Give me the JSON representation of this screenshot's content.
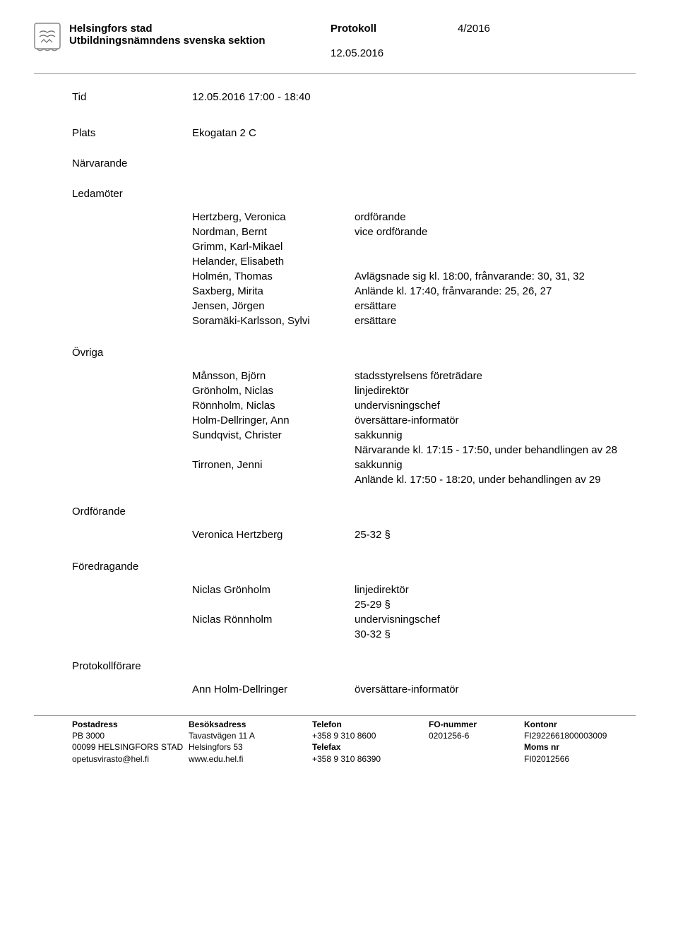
{
  "header": {
    "org": "Helsingfors stad",
    "doc_type": "Protokoll",
    "doc_num": "4/2016",
    "committee": "Utbildningsnämndens svenska sektion",
    "date": "12.05.2016"
  },
  "tid": {
    "label": "Tid",
    "value": "12.05.2016 17:00 - 18:40"
  },
  "plats": {
    "label": "Plats",
    "value": "Ekogatan 2 C"
  },
  "narvarande_label": "Närvarande",
  "ledamoter_label": "Ledamöter",
  "ledamoter": [
    {
      "name": "Hertzberg, Veronica",
      "role": "ordförande"
    },
    {
      "name": "Nordman, Bernt",
      "role": "vice ordförande"
    },
    {
      "name": "Grimm, Karl-Mikael",
      "role": ""
    },
    {
      "name": "Helander, Elisabeth",
      "role": ""
    },
    {
      "name": "Holmén, Thomas",
      "role": "Avlägsnade sig kl. 18:00, frånvarande: 30, 31, 32"
    },
    {
      "name": "Saxberg, Mirita",
      "role": "Anlände kl. 17:40, frånvarande: 25, 26, 27"
    },
    {
      "name": "Jensen, Jörgen",
      "role": "ersättare"
    },
    {
      "name": "Soramäki-Karlsson, Sylvi",
      "role": "ersättare"
    }
  ],
  "ovriga_label": "Övriga",
  "ovriga": [
    {
      "name": "Månsson, Björn",
      "role": "stadsstyrelsens företrädare"
    },
    {
      "name": "Grönholm, Niclas",
      "role": "linjedirektör"
    },
    {
      "name": "Rönnholm, Niclas",
      "role": "undervisningschef"
    },
    {
      "name": "Holm-Dellringer, Ann",
      "role": "översättare-informatör"
    },
    {
      "name": "Sundqvist, Christer",
      "role": "sakkunnig\nNärvarande kl. 17:15 - 17:50,  under behandlingen av 28"
    },
    {
      "name": "Tirronen, Jenni",
      "role": "sakkunnig\nAnlände kl. 17:50 - 18:20, under behandlingen av 29"
    }
  ],
  "ordforande_label": "Ordförande",
  "ordforande": [
    {
      "name": "Veronica Hertzberg",
      "role": "25-32 §"
    }
  ],
  "foredragande_label": "Föredragande",
  "foredragande": [
    {
      "name": "Niclas Grönholm",
      "role": "linjedirektör\n25-29 §"
    },
    {
      "name": "Niclas Rönnholm",
      "role": "undervisningschef\n30-32 §"
    }
  ],
  "protokollforare_label": "Protokollförare",
  "protokollforare": [
    {
      "name": "Ann Holm-Dellringer",
      "role": "översättare-informatör"
    }
  ],
  "footer": {
    "cols": [
      {
        "h": "Postadress",
        "lines": [
          "PB 3000",
          "00099 HELSINGFORS STAD",
          "opetusvirasto@hel.fi"
        ]
      },
      {
        "h": "Besöksadress",
        "lines": [
          "Tavastvägen 11 A",
          "Helsingfors 53",
          "www.edu.hel.fi"
        ]
      },
      {
        "h": "Telefon",
        "lines": [
          "+358 9 310 8600",
          "Telefax",
          "+358 9 310 86390"
        ]
      },
      {
        "h": "FO-nummer",
        "lines": [
          "0201256-6",
          "",
          ""
        ]
      },
      {
        "h": "Kontonr",
        "lines": [
          "FI2922661800003009",
          "Moms nr",
          "FI02012566"
        ]
      }
    ]
  }
}
